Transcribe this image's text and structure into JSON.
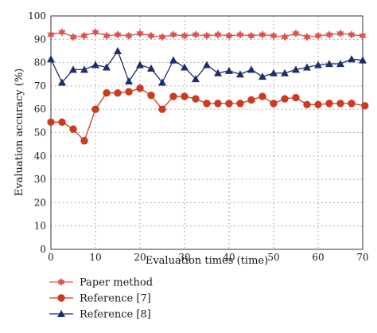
{
  "chart_data": {
    "type": "line",
    "title": "",
    "xlabel": "Evaluation times (time)",
    "ylabel": "Evaluation accuracy (%)",
    "xlim": [
      0,
      70
    ],
    "ylim": [
      0,
      100
    ],
    "xticks": [
      0,
      10,
      20,
      30,
      40,
      50,
      60,
      70
    ],
    "yticks": [
      0,
      10,
      20,
      30,
      40,
      50,
      60,
      70,
      80,
      90,
      100
    ],
    "grid": true,
    "legend_position": "bottom",
    "series": [
      {
        "name": "Paper method",
        "color": "#d9534f",
        "marker": "star",
        "x": [
          0,
          2.5,
          5,
          7.5,
          10,
          12.5,
          15,
          17.5,
          20,
          22.5,
          25,
          27.5,
          30,
          32.5,
          35,
          37.5,
          40,
          42.5,
          45,
          47.5,
          50,
          52.5,
          55,
          57.5,
          60,
          62.5,
          65,
          67.5,
          70
        ],
        "values": [
          92,
          93,
          91,
          91.5,
          93,
          91.5,
          92,
          91.5,
          92.5,
          91.5,
          91,
          92,
          91.5,
          92,
          91.5,
          92,
          91.5,
          92,
          91.5,
          92,
          91.5,
          91,
          92.5,
          91,
          91.5,
          92,
          92.5,
          92,
          91.5
        ]
      },
      {
        "name": "Reference [7]",
        "color": "#cc3a1f",
        "marker": "circle",
        "x": [
          0,
          2.5,
          5,
          7.5,
          10,
          12.5,
          15,
          17.5,
          20,
          22.5,
          25,
          27.5,
          30,
          32.5,
          35,
          37.5,
          40,
          42.5,
          45,
          47.5,
          50,
          52.5,
          55,
          57.5,
          60,
          62.5,
          65,
          67.5,
          70.5
        ],
        "values": [
          54.5,
          54.5,
          51.5,
          46.5,
          60,
          67,
          67,
          67.5,
          69,
          66,
          60,
          65.5,
          65.5,
          64.5,
          62.5,
          62.5,
          62.5,
          62.5,
          64,
          65.5,
          62.5,
          64.5,
          65,
          62,
          62,
          62.5,
          62.5,
          62.5,
          61.5
        ]
      },
      {
        "name": "Reference [8]",
        "color": "#1f2d6b",
        "marker": "triangle",
        "x": [
          0,
          2.5,
          5,
          7.5,
          10,
          12.5,
          15,
          17.5,
          20,
          22.5,
          25,
          27.5,
          30,
          32.5,
          35,
          37.5,
          40,
          42.5,
          45,
          47.5,
          50,
          52.5,
          55,
          57.5,
          60,
          62.5,
          65,
          67.5,
          70
        ],
        "values": [
          81.5,
          71.5,
          77,
          77,
          79,
          78,
          85,
          72,
          79,
          77.5,
          71.5,
          81,
          78,
          73,
          79,
          75.5,
          76.5,
          75,
          77,
          74,
          75.5,
          75.5,
          77,
          78,
          79,
          79.5,
          79.5,
          81.5,
          81
        ]
      }
    ]
  }
}
